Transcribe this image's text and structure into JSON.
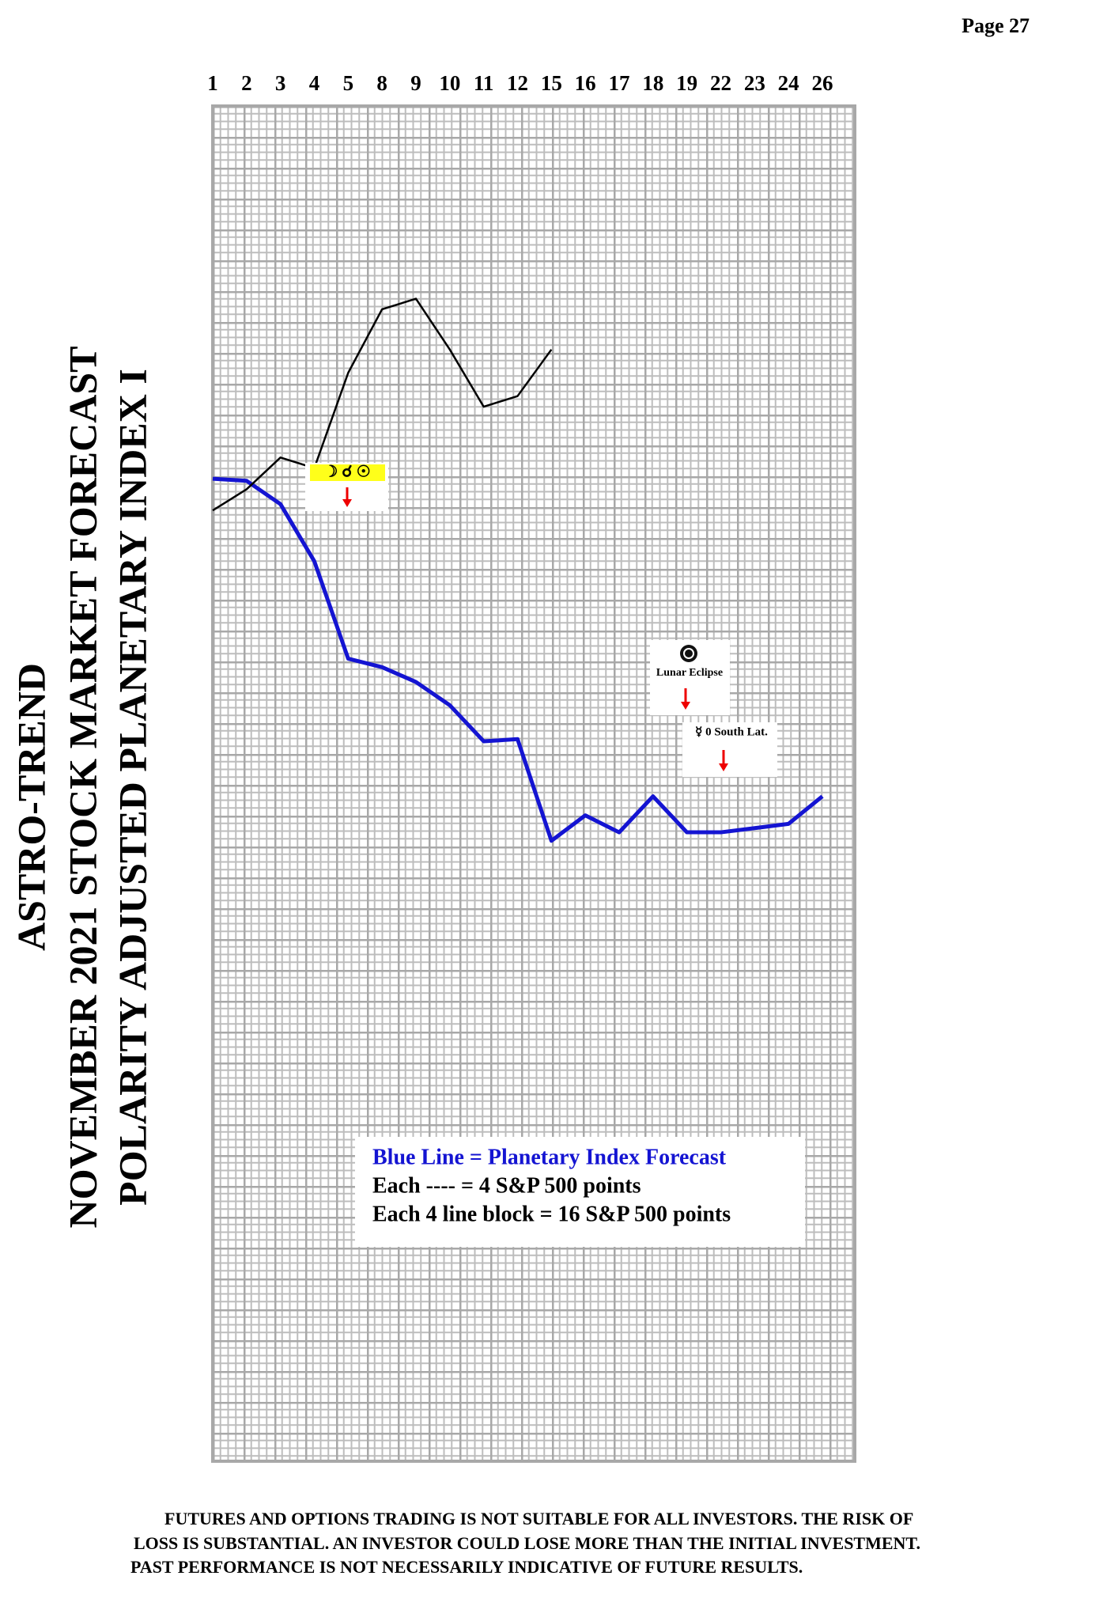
{
  "page": "Page 27",
  "title_lines": [
    "ASTRO-TREND",
    "NOVEMBER 2021 STOCK MARKET FORECAST",
    "POLARITY ADJUSTED PLANETARY INDEX I"
  ],
  "chart_data": {
    "type": "line",
    "categories": [
      "1",
      "2",
      "3",
      "4",
      "5",
      "8",
      "9",
      "10",
      "11",
      "12",
      "15",
      "16",
      "17",
      "18",
      "19",
      "22",
      "23",
      "24",
      "26"
    ],
    "series": [
      {
        "name": "Blue Line = Planetary Index Forecast",
        "color": "#1414d2",
        "values": [
          0,
          -1,
          -12,
          -39,
          -85,
          -89,
          -96,
          -107,
          -124,
          -123,
          -171,
          -159,
          -167,
          -150,
          -167,
          -167,
          -165,
          -163,
          -150
        ]
      },
      {
        "color": "#000000",
        "values": [
          -15,
          -5,
          10,
          5,
          50,
          80,
          85,
          61,
          34,
          39,
          61,
          null,
          null,
          null,
          null,
          null,
          null,
          null,
          null
        ]
      }
    ],
    "ylim": [
      -464,
      176
    ],
    "grid": true,
    "legend_lines": [
      "Each ---- =   4 S&P 500 points",
      "Each 4 line block =  16  S&P 500 points"
    ],
    "annotations": [
      "☽ ☌ ☉",
      "Lunar Eclipse",
      "☿ 0 South Lat."
    ]
  },
  "disclaimer": [
    "FUTURES AND OPTIONS TRADING IS NOT SUITABLE FOR ALL INVESTORS.  THE RISK OF",
    "LOSS IS SUBSTANTIAL.  AN INVESTOR COULD LOSE MORE THAN THE INITIAL INVESTMENT.",
    "PAST PERFORMANCE IS NOT NECESSARILY INDICATIVE OF FUTURE RESULTS."
  ]
}
